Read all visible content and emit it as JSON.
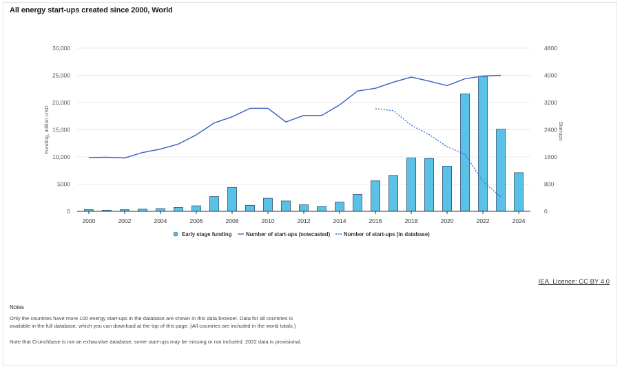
{
  "title": "All energy start-ups created since 2000, World",
  "license_text": "IEA. Licence: CC BY 4.0",
  "notes": {
    "heading": "Notes",
    "paragraph1": "Only the countries have more 100 energy start-ups in the database are shown in this data browser. Data for all countries is available in the full database, which you can download at the top of this page. (All countries are included in the world totals.)",
    "paragraph2": "Note that Crunchbase is not an exhaustive database, some start-ups may be missing or not included. 2022 data is provisional."
  },
  "colors": {
    "bar": "#5bc2e7",
    "bar_stroke": "#2b4d6e",
    "line": "#4466c4",
    "dotted": "#2f6bcf",
    "grid": "#e8e8e8"
  },
  "chart_data": {
    "type": "bar",
    "ylabel": "Funding, million USD",
    "y2label": "Startups",
    "ylim": [
      0,
      30000
    ],
    "y2lim": [
      0,
      4800
    ],
    "yticks": [
      "0",
      "5000",
      "10,000",
      "15,000",
      "20,000",
      "25,000",
      "30,000"
    ],
    "y2ticks": [
      "0",
      "800",
      "1600",
      "2400",
      "3200",
      "4000",
      "4800"
    ],
    "xticks": [
      "2000",
      "2002",
      "2004",
      "2006",
      "2008",
      "2010",
      "2012",
      "2014",
      "2016",
      "2018",
      "2020",
      "2022",
      "2024"
    ],
    "x": [
      2000,
      2001,
      2002,
      2003,
      2004,
      2005,
      2006,
      2007,
      2008,
      2009,
      2010,
      2011,
      2012,
      2013,
      2014,
      2015,
      2016,
      2017,
      2018,
      2019,
      2020,
      2021,
      2022,
      2023,
      2024
    ],
    "legend_position": "bottom",
    "series": [
      {
        "name": "Early stage funding",
        "kind": "bar",
        "axis": "left",
        "values": [
          300,
          200,
          300,
          400,
          500,
          700,
          1000,
          2700,
          4400,
          1100,
          2400,
          1900,
          1200,
          900,
          1700,
          3100,
          5600,
          6600,
          9800,
          9700,
          8300,
          21600,
          24800,
          15100,
          7100
        ]
      },
      {
        "name": "Number of start-ups (nowcasted)",
        "kind": "line",
        "axis": "right",
        "x": [
          2000,
          2001,
          2002,
          2003,
          2004,
          2005,
          2006,
          2007,
          2008,
          2009,
          2010,
          2011,
          2012,
          2013,
          2014,
          2015,
          2016,
          2017,
          2018,
          2019,
          2020,
          2021,
          2022,
          2023
        ],
        "values": [
          1580,
          1590,
          1570,
          1730,
          1830,
          1980,
          2250,
          2600,
          2780,
          3030,
          3030,
          2630,
          2820,
          2820,
          3130,
          3540,
          3620,
          3800,
          3950,
          3830,
          3700,
          3900,
          3980,
          4000
        ]
      },
      {
        "name": "Number of start-ups (in database)",
        "kind": "dotted",
        "axis": "right",
        "x": [
          2016,
          2017,
          2018,
          2019,
          2020,
          2021,
          2022,
          2023
        ],
        "values": [
          3020,
          2960,
          2530,
          2260,
          1900,
          1680,
          880,
          420
        ]
      }
    ]
  }
}
